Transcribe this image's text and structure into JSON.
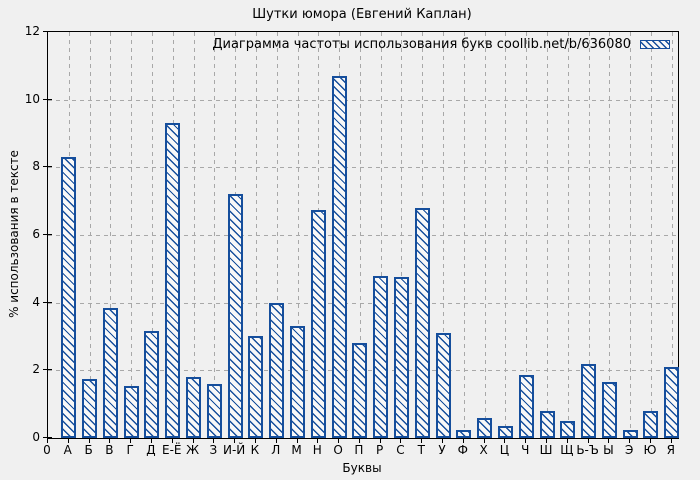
{
  "page": {
    "title": "Шутки юмора (Евгений Каплан)"
  },
  "legend": {
    "label": "Диаграмма частоты использования букв coollib.net/b/636080"
  },
  "axes": {
    "xlabel": "Буквы",
    "ylabel": "% использования в тексте",
    "origin_label": "0",
    "yticks": [
      0,
      2,
      4,
      6,
      8,
      10,
      12
    ]
  },
  "colors": {
    "bar_border": "#154e9c",
    "bar_hatch": "#154e9c",
    "bar_fill": "#f8f8f8",
    "background": "#f0f0f0",
    "grid": "#a8a8a8",
    "frame": "#000000"
  },
  "chart_data": {
    "type": "bar",
    "title": "Шутки юмора (Евгений Каплан)",
    "legend_label": "Диаграмма частоты использования букв coollib.net/b/636080",
    "xlabel": "Буквы",
    "ylabel": "% использования в тексте",
    "ylim": [
      0,
      12
    ],
    "grid": true,
    "legend_position": "top-right-inside",
    "hatch_style": "diagonal-backslash",
    "categories": [
      "А",
      "Б",
      "В",
      "Г",
      "Д",
      "Е-Ё",
      "Ж",
      "З",
      "И-Й",
      "К",
      "Л",
      "М",
      "Н",
      "О",
      "П",
      "Р",
      "С",
      "Т",
      "У",
      "Ф",
      "Х",
      "Ц",
      "Ч",
      "Ш",
      "Щ",
      "Ь-Ъ",
      "Ы",
      "Э",
      "Ю",
      "Я"
    ],
    "values": [
      8.3,
      1.75,
      3.85,
      1.55,
      3.15,
      9.3,
      1.8,
      1.6,
      7.2,
      3.0,
      4.0,
      3.3,
      6.75,
      10.7,
      2.8,
      4.8,
      4.75,
      6.8,
      3.1,
      0.25,
      0.6,
      0.35,
      1.85,
      0.8,
      0.5,
      2.2,
      1.65,
      0.25,
      0.8,
      2.1
    ]
  }
}
